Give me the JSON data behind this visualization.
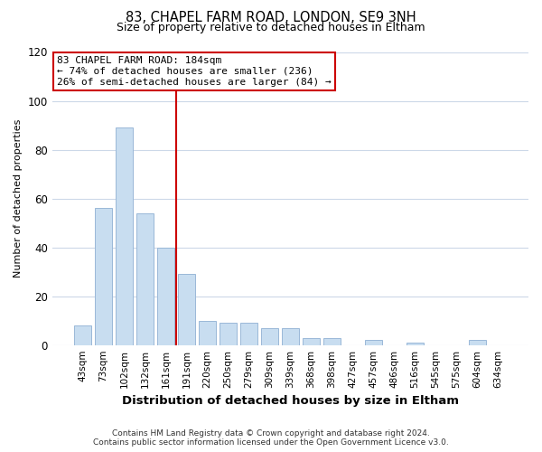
{
  "title_line1": "83, CHAPEL FARM ROAD, LONDON, SE9 3NH",
  "title_line2": "Size of property relative to detached houses in Eltham",
  "xlabel": "Distribution of detached houses by size in Eltham",
  "ylabel": "Number of detached properties",
  "bar_color": "#c8ddf0",
  "bar_edge_color": "#9ab8d8",
  "categories": [
    "43sqm",
    "73sqm",
    "102sqm",
    "132sqm",
    "161sqm",
    "191sqm",
    "220sqm",
    "250sqm",
    "279sqm",
    "309sqm",
    "339sqm",
    "368sqm",
    "398sqm",
    "427sqm",
    "457sqm",
    "486sqm",
    "516sqm",
    "545sqm",
    "575sqm",
    "604sqm",
    "634sqm"
  ],
  "values": [
    8,
    56,
    89,
    54,
    40,
    29,
    10,
    9,
    9,
    7,
    7,
    3,
    3,
    0,
    2,
    0,
    1,
    0,
    0,
    2,
    0
  ],
  "ylim": [
    0,
    120
  ],
  "yticks": [
    0,
    20,
    40,
    60,
    80,
    100,
    120
  ],
  "property_line_idx": 5,
  "property_line_label": "83 CHAPEL FARM ROAD: 184sqm",
  "annotation_line1": "← 74% of detached houses are smaller (236)",
  "annotation_line2": "26% of semi-detached houses are larger (84) →",
  "annotation_box_color": "#ffffff",
  "annotation_box_edge": "#cc0000",
  "vline_color": "#cc0000",
  "footnote1": "Contains HM Land Registry data © Crown copyright and database right 2024.",
  "footnote2": "Contains public sector information licensed under the Open Government Licence v3.0.",
  "background_color": "#ffffff",
  "grid_color": "#ccd8e8",
  "title1_fontsize": 10.5,
  "title2_fontsize": 9,
  "ylabel_fontsize": 8,
  "xlabel_fontsize": 9.5,
  "tick_fontsize": 7.5,
  "ytick_fontsize": 8.5,
  "footnote_fontsize": 6.5
}
